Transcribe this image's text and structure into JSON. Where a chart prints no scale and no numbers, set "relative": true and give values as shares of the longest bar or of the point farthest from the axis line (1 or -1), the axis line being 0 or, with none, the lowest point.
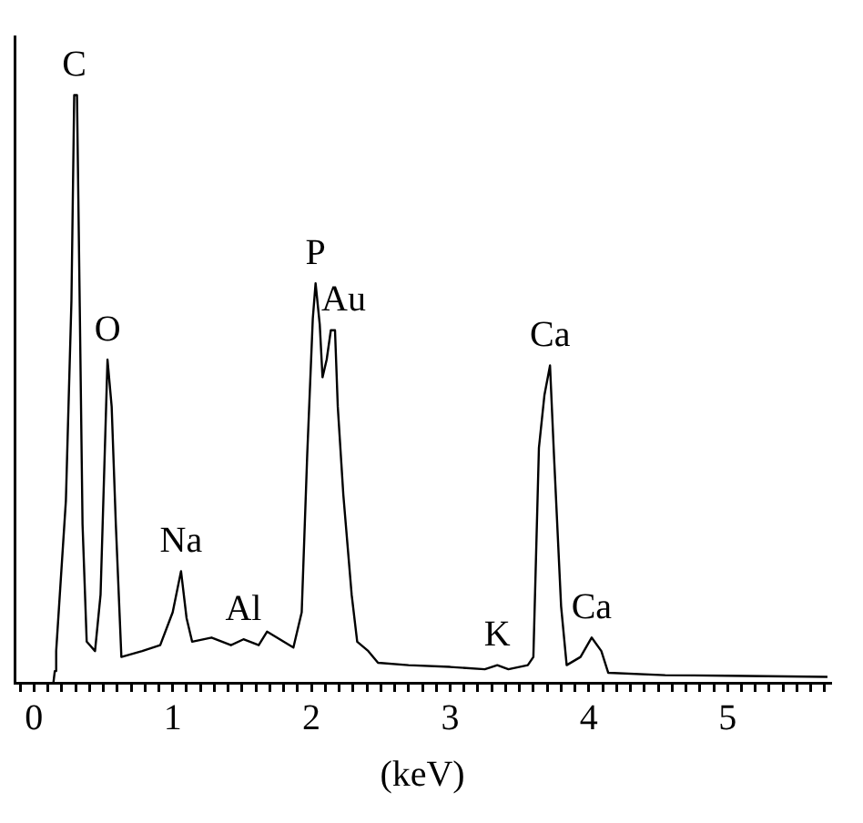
{
  "chart_data": {
    "type": "line",
    "xlabel": "(keV)",
    "relative": true,
    "tick_labels": "x",
    "grid": false,
    "legend": false,
    "marker": "none",
    "line_style": "solid",
    "xlim": [
      -0.14,
      5.74
    ],
    "xticks": [
      {
        "value": -0.1,
        "label": null
      },
      0,
      {
        "value": 0.1,
        "label": null
      },
      {
        "value": 0.2,
        "label": null
      },
      {
        "value": 0.3,
        "label": null
      },
      {
        "value": 0.4,
        "label": null
      },
      {
        "value": 0.5,
        "label": null
      },
      {
        "value": 0.6,
        "label": null
      },
      {
        "value": 0.7,
        "label": null
      },
      {
        "value": 0.8,
        "label": null
      },
      {
        "value": 0.9,
        "label": null
      },
      1,
      {
        "value": 1.1,
        "label": null
      },
      {
        "value": 1.2,
        "label": null
      },
      {
        "value": 1.3,
        "label": null
      },
      {
        "value": 1.4,
        "label": null
      },
      {
        "value": 1.5,
        "label": null
      },
      {
        "value": 1.6,
        "label": null
      },
      {
        "value": 1.7,
        "label": null
      },
      {
        "value": 1.8,
        "label": null
      },
      {
        "value": 1.9,
        "label": null
      },
      2,
      {
        "value": 2.1,
        "label": null
      },
      {
        "value": 2.2,
        "label": null
      },
      {
        "value": 2.3,
        "label": null
      },
      {
        "value": 2.4,
        "label": null
      },
      {
        "value": 2.5,
        "label": null
      },
      {
        "value": 2.6,
        "label": null
      },
      {
        "value": 2.7,
        "label": null
      },
      {
        "value": 2.8,
        "label": null
      },
      {
        "value": 2.9,
        "label": null
      },
      3,
      {
        "value": 3.1,
        "label": null
      },
      {
        "value": 3.2,
        "label": null
      },
      {
        "value": 3.3,
        "label": null
      },
      {
        "value": 3.4,
        "label": null
      },
      {
        "value": 3.5,
        "label": null
      },
      {
        "value": 3.6,
        "label": null
      },
      {
        "value": 3.7,
        "label": null
      },
      {
        "value": 3.8,
        "label": null
      },
      {
        "value": 3.9,
        "label": null
      },
      4,
      {
        "value": 4.1,
        "label": null
      },
      {
        "value": 4.2,
        "label": null
      },
      {
        "value": 4.3,
        "label": null
      },
      {
        "value": 4.4,
        "label": null
      },
      {
        "value": 4.5,
        "label": null
      },
      {
        "value": 4.6,
        "label": null
      },
      {
        "value": 4.7,
        "label": null
      },
      {
        "value": 4.8,
        "label": null
      },
      {
        "value": 4.9,
        "label": null
      },
      5,
      {
        "value": 5.1,
        "label": null
      },
      {
        "value": 5.2,
        "label": null
      },
      {
        "value": 5.3,
        "label": null
      },
      {
        "value": 5.4,
        "label": null
      },
      {
        "value": 5.5,
        "label": null
      },
      {
        "value": 5.6,
        "label": null
      },
      {
        "value": 5.7,
        "label": null
      }
    ],
    "series": [
      {
        "color": "#000000",
        "x": [
          0.14,
          0.15,
          0.16,
          0.23,
          0.27,
          0.29,
          0.31,
          0.33,
          0.35,
          0.38,
          0.44,
          0.48,
          0.52,
          0.53,
          0.56,
          0.59,
          0.63,
          0.78,
          0.91,
          1.0,
          1.06,
          1.1,
          1.14,
          1.28,
          1.42,
          1.51,
          1.62,
          1.68,
          1.87,
          1.93,
          1.97,
          2.01,
          2.03,
          2.06,
          2.08,
          2.11,
          2.14,
          2.17,
          2.19,
          2.23,
          2.29,
          2.33,
          2.41,
          2.48,
          2.7,
          3.0,
          3.25,
          3.34,
          3.42,
          3.56,
          3.6,
          3.64,
          3.68,
          3.72,
          3.75,
          3.8,
          3.84,
          3.94,
          4.02,
          4.09,
          4.14,
          4.55,
          5.0,
          5.72
        ],
        "values": [
          0,
          0.02,
          0.054,
          0.31,
          0.65,
          1.0,
          1.0,
          0.64,
          0.27,
          0.07,
          0.054,
          0.15,
          0.47,
          0.55,
          0.47,
          0.27,
          0.044,
          0.054,
          0.064,
          0.12,
          0.19,
          0.11,
          0.07,
          0.077,
          0.064,
          0.074,
          0.064,
          0.087,
          0.06,
          0.12,
          0.39,
          0.62,
          0.68,
          0.61,
          0.52,
          0.55,
          0.6,
          0.6,
          0.47,
          0.32,
          0.15,
          0.07,
          0.054,
          0.034,
          0.03,
          0.027,
          0.023,
          0.03,
          0.023,
          0.03,
          0.044,
          0.4,
          0.49,
          0.54,
          0.38,
          0.13,
          0.03,
          0.044,
          0.077,
          0.054,
          0.017,
          0.013,
          0.012,
          0.01
        ]
      }
    ],
    "annotations": [
      {
        "text": "C",
        "x": 0.29,
        "y": 1.0
      },
      {
        "text": "O",
        "x": 0.53,
        "y": 0.55
      },
      {
        "text": "Na",
        "x": 1.06,
        "y": 0.19
      },
      {
        "text": "Al",
        "x": 1.51,
        "y": 0.074
      },
      {
        "text": "P",
        "x": 2.03,
        "y": 0.68
      },
      {
        "text": "Au",
        "x": 2.14,
        "y": 0.6
      },
      {
        "text": "K",
        "x": 3.34,
        "y": 0.03
      },
      {
        "text": "Ca",
        "x": 3.72,
        "y": 0.54
      },
      {
        "text": "Ca",
        "x": 4.02,
        "y": 0.077
      }
    ]
  }
}
